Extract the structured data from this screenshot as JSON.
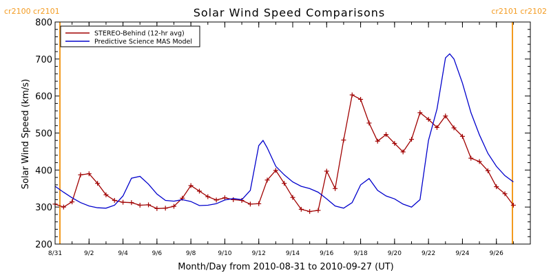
{
  "chart_data": {
    "type": "line",
    "title": "Solar Wind Speed Comparisons",
    "xlabel": "Month/Day from 2010-08-31 to 2010-09-27 (UT)",
    "ylabel": "Solar Wind Speed (km/s)",
    "ylim": [
      200,
      800
    ],
    "yticks": [
      200,
      300,
      400,
      500,
      600,
      700,
      800
    ],
    "xlim": [
      "2010-08-31",
      "2010-09-28"
    ],
    "xticks": [
      {
        "date": "2010-08-31",
        "label": "8/31"
      },
      {
        "date": "2010-09-02",
        "label": "9/2"
      },
      {
        "date": "2010-09-04",
        "label": "9/4"
      },
      {
        "date": "2010-09-06",
        "label": "9/6"
      },
      {
        "date": "2010-09-08",
        "label": "9/8"
      },
      {
        "date": "2010-09-10",
        "label": "9/10"
      },
      {
        "date": "2010-09-12",
        "label": "9/12"
      },
      {
        "date": "2010-09-14",
        "label": "9/14"
      },
      {
        "date": "2010-09-16",
        "label": "9/16"
      },
      {
        "date": "2010-09-18",
        "label": "9/18"
      },
      {
        "date": "2010-09-20",
        "label": "9/20"
      },
      {
        "date": "2010-09-22",
        "label": "9/22"
      },
      {
        "date": "2010-09-24",
        "label": "9/24"
      },
      {
        "date": "2010-09-26",
        "label": "9/26"
      }
    ],
    "legend_position": "top-left",
    "series": [
      {
        "name": "STEREO-Behind (12-hr avg)",
        "color": "#a00000",
        "markers": "plus",
        "points": [
          [
            "2010-08-31T00:00",
            308
          ],
          [
            "2010-08-31T12:00",
            300
          ],
          [
            "2010-09-01T00:00",
            314
          ],
          [
            "2010-09-01T12:00",
            387
          ],
          [
            "2010-09-02T00:00",
            390
          ],
          [
            "2010-09-02T12:00",
            364
          ],
          [
            "2010-09-03T00:00",
            333
          ],
          [
            "2010-09-03T12:00",
            318
          ],
          [
            "2010-09-04T00:00",
            313
          ],
          [
            "2010-09-04T12:00",
            312
          ],
          [
            "2010-09-05T00:00",
            305
          ],
          [
            "2010-09-05T12:00",
            306
          ],
          [
            "2010-09-06T00:00",
            296
          ],
          [
            "2010-09-06T12:00",
            297
          ],
          [
            "2010-09-07T00:00",
            302
          ],
          [
            "2010-09-07T12:00",
            324
          ],
          [
            "2010-09-08T00:00",
            358
          ],
          [
            "2010-09-08T12:00",
            343
          ],
          [
            "2010-09-09T00:00",
            328
          ],
          [
            "2010-09-09T12:00",
            319
          ],
          [
            "2010-09-10T00:00",
            325
          ],
          [
            "2010-09-10T12:00",
            320
          ],
          [
            "2010-09-11T00:00",
            318
          ],
          [
            "2010-09-11T12:00",
            308
          ],
          [
            "2010-09-12T00:00",
            309
          ],
          [
            "2010-09-12T12:00",
            373
          ],
          [
            "2010-09-13T00:00",
            399
          ],
          [
            "2010-09-13T12:00",
            364
          ],
          [
            "2010-09-14T00:00",
            326
          ],
          [
            "2010-09-14T12:00",
            294
          ],
          [
            "2010-09-15T00:00",
            288
          ],
          [
            "2010-09-15T12:00",
            291
          ],
          [
            "2010-09-16T00:00",
            397
          ],
          [
            "2010-09-16T12:00",
            350
          ],
          [
            "2010-09-17T00:00",
            481
          ],
          [
            "2010-09-17T12:00",
            603
          ],
          [
            "2010-09-18T00:00",
            591
          ],
          [
            "2010-09-18T12:00",
            527
          ],
          [
            "2010-09-19T00:00",
            478
          ],
          [
            "2010-09-19T12:00",
            496
          ],
          [
            "2010-09-20T00:00",
            472
          ],
          [
            "2010-09-20T12:00",
            449
          ],
          [
            "2010-09-21T00:00",
            483
          ],
          [
            "2010-09-21T12:00",
            555
          ],
          [
            "2010-09-22T00:00",
            537
          ],
          [
            "2010-09-22T12:00",
            515
          ],
          [
            "2010-09-23T00:00",
            546
          ],
          [
            "2010-09-23T12:00",
            514
          ],
          [
            "2010-09-24T00:00",
            491
          ],
          [
            "2010-09-24T12:00",
            432
          ],
          [
            "2010-09-25T00:00",
            423
          ],
          [
            "2010-09-25T12:00",
            398
          ],
          [
            "2010-09-26T00:00",
            355
          ],
          [
            "2010-09-26T12:00",
            336
          ],
          [
            "2010-09-27T00:00",
            305
          ]
        ]
      },
      {
        "name": "Predictive Science MAS Model",
        "color": "#0000cc",
        "markers": "none",
        "points": [
          [
            "2010-08-31T00:00",
            356
          ],
          [
            "2010-08-31T12:00",
            340
          ],
          [
            "2010-09-01T00:00",
            325
          ],
          [
            "2010-09-01T12:00",
            312
          ],
          [
            "2010-09-02T00:00",
            303
          ],
          [
            "2010-09-02T12:00",
            298
          ],
          [
            "2010-09-03T00:00",
            297
          ],
          [
            "2010-09-03T12:00",
            305
          ],
          [
            "2010-09-04T00:00",
            330
          ],
          [
            "2010-09-04T12:00",
            378
          ],
          [
            "2010-09-05T00:00",
            383
          ],
          [
            "2010-09-05T12:00",
            362
          ],
          [
            "2010-09-06T00:00",
            335
          ],
          [
            "2010-09-06T12:00",
            318
          ],
          [
            "2010-09-07T00:00",
            316
          ],
          [
            "2010-09-07T12:00",
            320
          ],
          [
            "2010-09-08T00:00",
            315
          ],
          [
            "2010-09-08T12:00",
            304
          ],
          [
            "2010-09-09T00:00",
            305
          ],
          [
            "2010-09-09T12:00",
            309
          ],
          [
            "2010-09-10T00:00",
            319
          ],
          [
            "2010-09-10T12:00",
            323
          ],
          [
            "2010-09-11T00:00",
            320
          ],
          [
            "2010-09-11T12:00",
            345
          ],
          [
            "2010-09-12T00:00",
            466
          ],
          [
            "2010-09-12T06:00",
            480
          ],
          [
            "2010-09-12T12:00",
            460
          ],
          [
            "2010-09-13T00:00",
            410
          ],
          [
            "2010-09-13T12:00",
            387
          ],
          [
            "2010-09-14T00:00",
            368
          ],
          [
            "2010-09-14T12:00",
            356
          ],
          [
            "2010-09-15T00:00",
            350
          ],
          [
            "2010-09-15T12:00",
            340
          ],
          [
            "2010-09-16T00:00",
            322
          ],
          [
            "2010-09-16T12:00",
            303
          ],
          [
            "2010-09-17T00:00",
            297
          ],
          [
            "2010-09-17T12:00",
            312
          ],
          [
            "2010-09-18T00:00",
            360
          ],
          [
            "2010-09-18T12:00",
            377
          ],
          [
            "2010-09-19T00:00",
            345
          ],
          [
            "2010-09-19T12:00",
            330
          ],
          [
            "2010-09-20T00:00",
            322
          ],
          [
            "2010-09-20T12:00",
            308
          ],
          [
            "2010-09-21T00:00",
            300
          ],
          [
            "2010-09-21T12:00",
            320
          ],
          [
            "2010-09-22T00:00",
            480
          ],
          [
            "2010-09-22T12:00",
            565
          ],
          [
            "2010-09-23T00:00",
            703
          ],
          [
            "2010-09-23T06:00",
            714
          ],
          [
            "2010-09-23T12:00",
            700
          ],
          [
            "2010-09-24T00:00",
            635
          ],
          [
            "2010-09-24T12:00",
            555
          ],
          [
            "2010-09-25T00:00",
            495
          ],
          [
            "2010-09-25T12:00",
            445
          ],
          [
            "2010-09-26T00:00",
            410
          ],
          [
            "2010-09-26T12:00",
            385
          ],
          [
            "2010-09-27T00:00",
            368
          ]
        ]
      }
    ],
    "carrington_markers": [
      {
        "date": "2010-08-31",
        "label": "cr2100 cr2101",
        "side": "left"
      },
      {
        "date": "2010-09-28",
        "label": "cr2101 cr2102",
        "side": "right"
      }
    ],
    "colors": {
      "marker_line": "#f39a1e",
      "marker_label": "#f39a1e"
    }
  }
}
